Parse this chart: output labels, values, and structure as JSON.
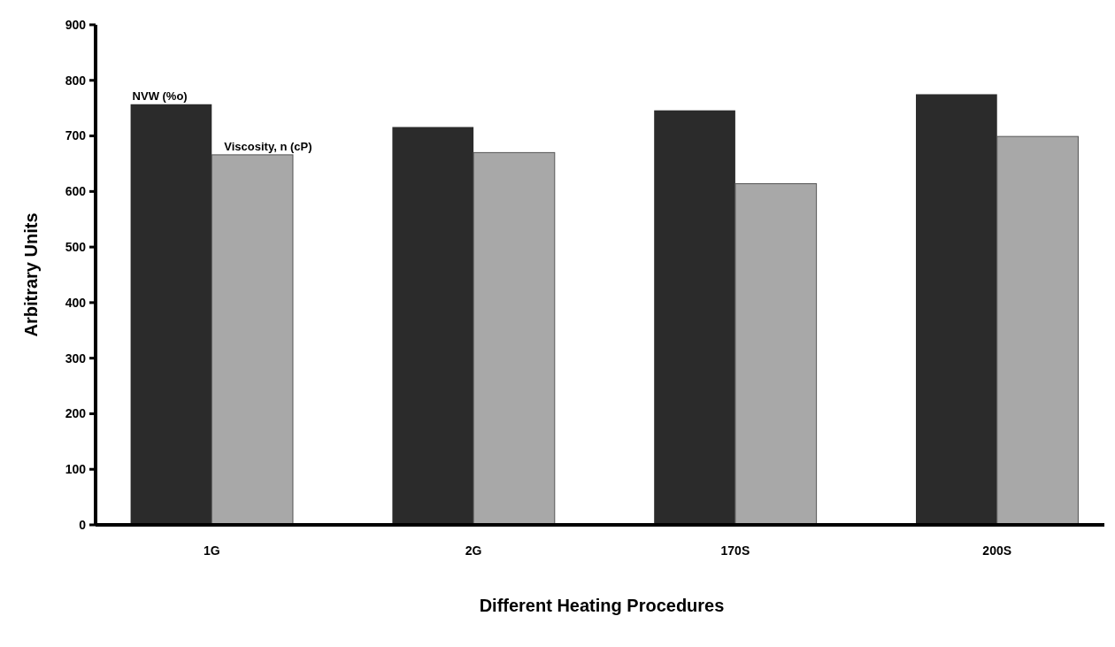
{
  "chart_data": {
    "type": "bar",
    "xlabel": "Different Heating Procedures",
    "ylabel": "Arbitrary Units",
    "categories": [
      "1G",
      "2G",
      "170S",
      "200S"
    ],
    "series": [
      {
        "name": "NVW (%o)",
        "color": "#2b2b2b",
        "values": [
          757,
          716,
          746,
          775
        ]
      },
      {
        "name": "Viscosity, n (cP)",
        "color": "#a8a8a8",
        "values": [
          666,
          670,
          614,
          699
        ]
      }
    ],
    "ylim": [
      0,
      900
    ],
    "yticks": [
      0,
      100,
      200,
      300,
      400,
      500,
      600,
      700,
      800,
      900
    ],
    "grid": false,
    "legend": false
  }
}
